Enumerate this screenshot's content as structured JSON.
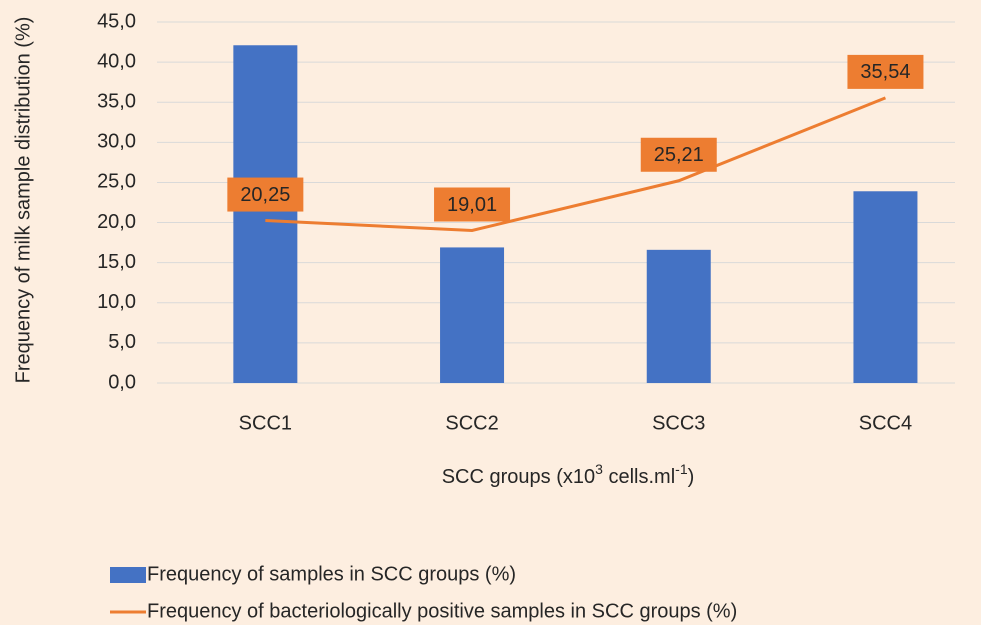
{
  "chart_data": {
    "type": "bar",
    "y_label": "Frequency of milk sample distribution (%)",
    "x_label": [
      "SCC groups (x10",
      "3",
      " cells.ml",
      "-1",
      ")"
    ],
    "categories": [
      "SCC1",
      "SCC2",
      "SCC3",
      "SCC4"
    ],
    "series": [
      {
        "name": "Frequency of samples in SCC groups (%)",
        "type": "bar",
        "color": "#4472c4",
        "values": [
          42.1,
          16.9,
          16.6,
          23.9
        ]
      },
      {
        "name": "Frequency of bacteriologically positive samples in SCC groups (%)",
        "type": "line",
        "color": "#ed7d31",
        "values": [
          20.25,
          19.01,
          25.21,
          35.54
        ],
        "value_labels": [
          "20,25",
          "19,01",
          "25,21",
          "35,54"
        ]
      }
    ],
    "ylim": [
      0,
      45
    ],
    "yticks": [
      {
        "value": 0,
        "label": "0,0"
      },
      {
        "value": 5,
        "label": "5,0"
      },
      {
        "value": 10,
        "label": "10,0"
      },
      {
        "value": 15,
        "label": "15,0"
      },
      {
        "value": 20,
        "label": "20,0"
      },
      {
        "value": 25,
        "label": "25,0"
      },
      {
        "value": 30,
        "label": "30,0"
      },
      {
        "value": 35,
        "label": "35,0"
      },
      {
        "value": 40,
        "label": "40,0"
      },
      {
        "value": 45,
        "label": "45,0"
      }
    ],
    "grid": true,
    "legend": "bottom-left"
  }
}
